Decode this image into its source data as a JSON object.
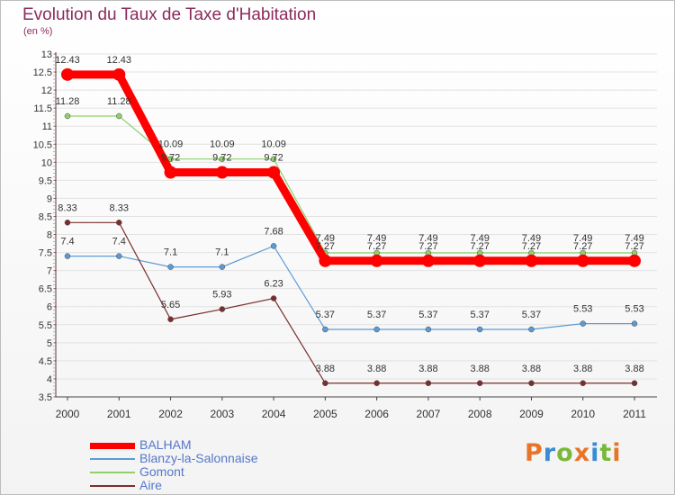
{
  "title": "Evolution du Taux de Taxe d'Habitation",
  "subtitle": "(en %)",
  "logo": {
    "text": "Proxiti",
    "colors": [
      "#e8742a",
      "#3a8bd6",
      "#7ab83a",
      "#e8742a",
      "#3a8bd6",
      "#7ab83a",
      "#e8742a"
    ]
  },
  "chart_data": {
    "type": "line",
    "x": [
      "2000",
      "2001",
      "2002",
      "2003",
      "2004",
      "2005",
      "2006",
      "2007",
      "2008",
      "2009",
      "2010",
      "2011"
    ],
    "ylim": [
      3.5,
      13
    ],
    "yticks": [
      "3.5",
      "4",
      "4.5",
      "5",
      "5.5",
      "6",
      "6.5",
      "7",
      "7.5",
      "8",
      "8.5",
      "9",
      "9.5",
      "10",
      "10.5",
      "11",
      "11.5",
      "12",
      "12.5",
      "13"
    ],
    "grid": "horizontal",
    "legend": "bottom-left",
    "series": [
      {
        "name": "BALHAM",
        "color": "#ff0000",
        "values": [
          12.43,
          12.43,
          9.72,
          9.72,
          9.72,
          7.27,
          7.27,
          7.27,
          7.27,
          7.27,
          7.27,
          7.27
        ],
        "labels": [
          "12.43",
          "12.43",
          "9.72",
          "9.72",
          "9.72",
          "7.27",
          "7.27",
          "7.27",
          "7.27",
          "7.27",
          "7.27",
          "7.27"
        ]
      },
      {
        "name": "Blanzy-la-Salonnaise",
        "color": "#5b9bd5",
        "values": [
          7.4,
          7.4,
          7.1,
          7.1,
          7.68,
          5.37,
          5.37,
          5.37,
          5.37,
          5.37,
          5.53,
          5.53
        ],
        "labels": [
          "7.4",
          "7.4",
          "7.1",
          "7.1",
          "7.68",
          "5.37",
          "5.37",
          "5.37",
          "5.37",
          "5.37",
          "5.53",
          "5.53"
        ]
      },
      {
        "name": "Gomont",
        "color": "#8fd16a",
        "values": [
          11.28,
          11.28,
          10.09,
          10.09,
          10.09,
          7.49,
          7.49,
          7.49,
          7.49,
          7.49,
          7.49,
          7.49
        ],
        "labels": [
          "11.28",
          "11.28",
          "10.09",
          "10.09",
          "10.09",
          "7.49",
          "7.49",
          "7.49",
          "7.49",
          "7.49",
          "7.49",
          "7.49"
        ]
      },
      {
        "name": "Aire",
        "color": "#7a2e2e",
        "values": [
          8.33,
          8.33,
          5.65,
          5.93,
          6.23,
          3.88,
          3.88,
          3.88,
          3.88,
          3.88,
          3.88,
          3.88
        ],
        "labels": [
          "8.33",
          "8.33",
          "5.65",
          "5.93",
          "6.23",
          "3.88",
          "3.88",
          "3.88",
          "3.88",
          "3.88",
          "3.88",
          "3.88"
        ]
      }
    ]
  }
}
